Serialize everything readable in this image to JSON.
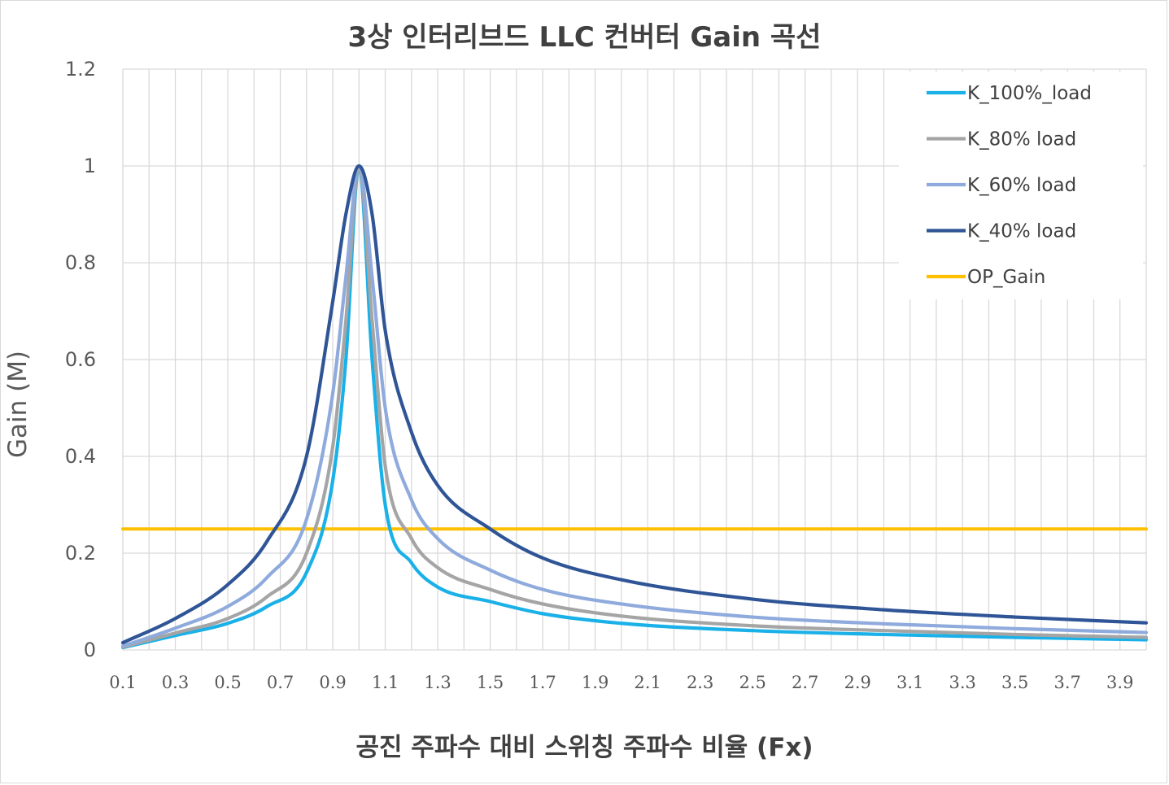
{
  "chart_data": {
    "type": "line",
    "title": "3상 인터리브드 LLC 컨버터 Gain 곡선",
    "xlabel": "공진 주파수 대비 스위칭 주파수 비율 (Fx)",
    "ylabel": "Gain (M)",
    "xlim": [
      0.1,
      4.0
    ],
    "ylim": [
      0,
      1.2
    ],
    "grid": true,
    "legend_position": "top-right",
    "x_ticks": [
      "0.1",
      "0.3",
      "0.5",
      "0.7",
      "0.9",
      "1.1",
      "1.3",
      "1.5",
      "1.7",
      "1.9",
      "2.1",
      "2.3",
      "2.5",
      "2.7",
      "2.9",
      "3.1",
      "3.3",
      "3.5",
      "3.7",
      "3.9"
    ],
    "y_ticks": [
      "0",
      "0.2",
      "0.4",
      "0.6",
      "0.8",
      "1",
      "1.2"
    ],
    "x": [
      0.1,
      0.3,
      0.5,
      0.65,
      0.8,
      0.9,
      0.95,
      1.0,
      1.05,
      1.1,
      1.2,
      1.3,
      1.5,
      1.7,
      2.0,
      2.5,
      3.0,
      3.5,
      4.0
    ],
    "series": [
      {
        "name": "K_100%_load",
        "color": "#1ab0e8",
        "values": [
          0.005,
          0.03,
          0.055,
          0.09,
          0.16,
          0.35,
          0.6,
          1.0,
          0.6,
          0.3,
          0.18,
          0.13,
          0.1,
          0.075,
          0.055,
          0.04,
          0.032,
          0.026,
          0.021
        ]
      },
      {
        "name": "K_80% load",
        "color": "#a5a5a5",
        "values": [
          0.006,
          0.035,
          0.065,
          0.11,
          0.2,
          0.42,
          0.68,
          1.0,
          0.68,
          0.38,
          0.23,
          0.17,
          0.125,
          0.095,
          0.07,
          0.05,
          0.04,
          0.032,
          0.026
        ]
      },
      {
        "name": "K_60% load",
        "color": "#8faadc",
        "values": [
          0.008,
          0.045,
          0.09,
          0.15,
          0.27,
          0.53,
          0.77,
          1.0,
          0.77,
          0.5,
          0.31,
          0.23,
          0.165,
          0.125,
          0.095,
          0.068,
          0.054,
          0.044,
          0.036
        ]
      },
      {
        "name": "K_40% load",
        "color": "#2f5597",
        "values": [
          0.015,
          0.065,
          0.135,
          0.225,
          0.4,
          0.72,
          0.9,
          1.0,
          0.9,
          0.66,
          0.45,
          0.34,
          0.25,
          0.19,
          0.145,
          0.105,
          0.083,
          0.068,
          0.056
        ]
      },
      {
        "name": "OP_Gain",
        "color": "#ffc000",
        "values": [
          0.25,
          0.25,
          0.25,
          0.25,
          0.25,
          0.25,
          0.25,
          0.25,
          0.25,
          0.25,
          0.25,
          0.25,
          0.25,
          0.25,
          0.25,
          0.25,
          0.25,
          0.25,
          0.25
        ]
      }
    ]
  }
}
